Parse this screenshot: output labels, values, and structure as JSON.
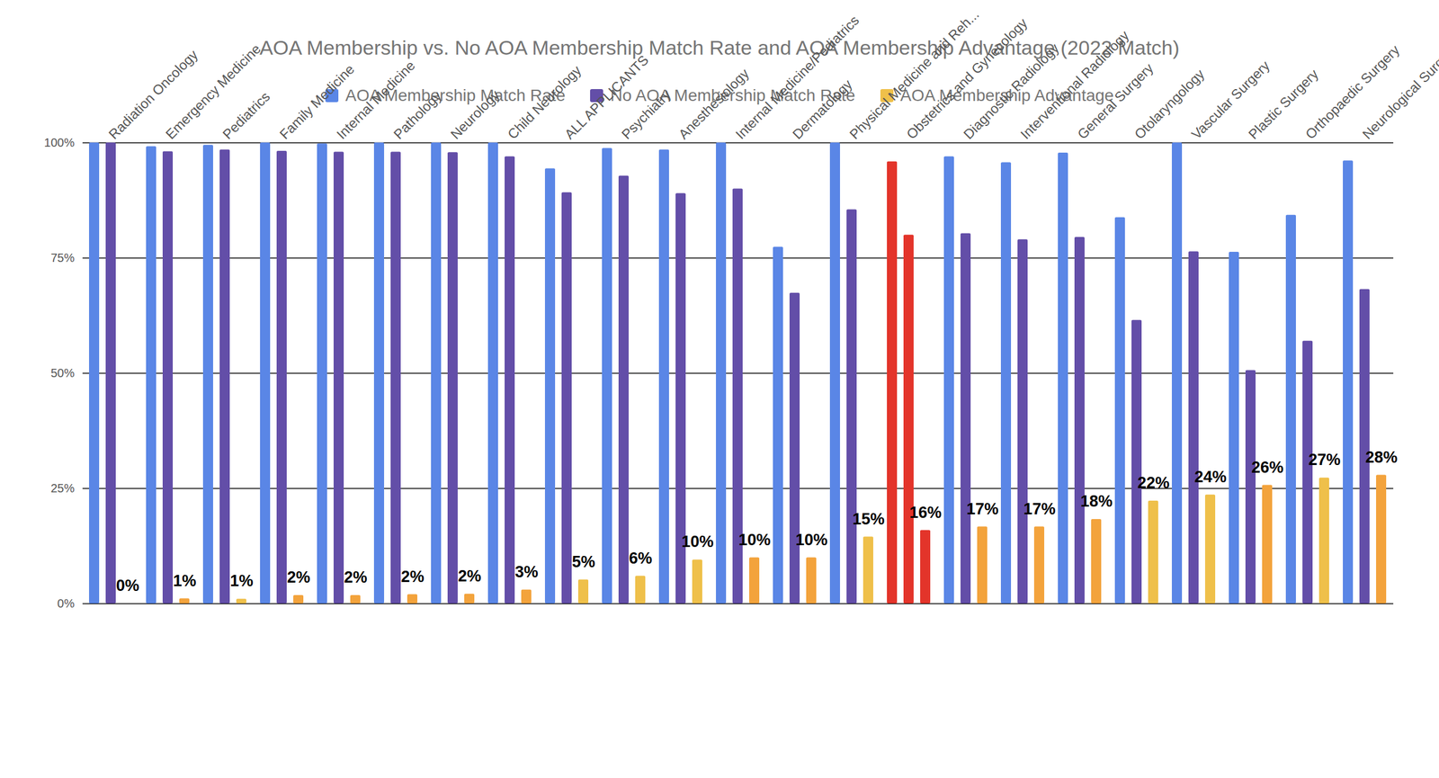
{
  "chart_data": {
    "type": "bar",
    "title": "AOA Membership vs. No AOA Membership Match Rate and AOA Membership Advantage (2022 Match)",
    "categories": [
      "Radiation Oncology",
      "Emergency Medicine",
      "Pediatrics",
      "Family Medicine",
      "Internal Medicine",
      "Pathology",
      "Neurology",
      "Child Neurology",
      "ALL APPLICANTS",
      "Psychiatry",
      "Anesthesiology",
      "Internal Medicine/Pediatrics",
      "Dermatology",
      "Physical Medicine and Reh...",
      "Obstetrics and Gynecology",
      "Diagnostic Radiology",
      "Interventional Radiology",
      "General Surgery",
      "Otolaryngology",
      "Vascular Surgery",
      "Plastic Surgery",
      "Orthopaedic Surgery",
      "Neurological Surgery"
    ],
    "series": [
      {
        "name": "AOA Membership Match Rate",
        "color": "#5a86e6",
        "colors": [
          "#5a86e6",
          "#5a86e6",
          "#5a86e6",
          "#5a86e6",
          "#5a86e6",
          "#5a86e6",
          "#5a86e6",
          "#5a86e6",
          "#5a86e6",
          "#5a86e6",
          "#5a86e6",
          "#5a86e6",
          "#5a86e6",
          "#5a86e6",
          "#e3342a",
          "#5a86e6",
          "#5a86e6",
          "#5a86e6",
          "#5a86e6",
          "#5a86e6",
          "#5a86e6",
          "#5a86e6",
          "#5a86e6"
        ],
        "values": [
          100,
          99.2,
          99.5,
          100,
          99.8,
          100,
          100,
          100,
          94.4,
          98.8,
          98.5,
          100,
          77.4,
          100,
          95.9,
          97.0,
          95.7,
          97.8,
          83.8,
          100,
          76.3,
          84.3,
          96.1
        ]
      },
      {
        "name": "No AOA Membership Match Rate",
        "color": "#634ea8",
        "colors": [
          "#634ea8",
          "#634ea8",
          "#634ea8",
          "#634ea8",
          "#634ea8",
          "#634ea8",
          "#634ea8",
          "#634ea8",
          "#634ea8",
          "#634ea8",
          "#634ea8",
          "#634ea8",
          "#634ea8",
          "#634ea8",
          "#e3342a",
          "#634ea8",
          "#634ea8",
          "#634ea8",
          "#634ea8",
          "#634ea8",
          "#634ea8",
          "#634ea8",
          "#634ea8"
        ],
        "values": [
          100,
          98.1,
          98.5,
          98.2,
          98.0,
          98.0,
          97.9,
          97.0,
          89.2,
          92.8,
          89.0,
          90.0,
          67.4,
          85.5,
          80.0,
          80.3,
          79.0,
          79.5,
          61.5,
          76.4,
          50.6,
          57.0,
          68.2
        ]
      },
      {
        "name": "AOA Membership Advantage",
        "color": "#efc04a",
        "colors": [
          "#efc04a",
          "#f3a33c",
          "#efc04a",
          "#f3a33c",
          "#f3a33c",
          "#f3a33c",
          "#f3a33c",
          "#f3a33c",
          "#efc04a",
          "#efc04a",
          "#efc04a",
          "#f3a33c",
          "#f3a33c",
          "#efc04a",
          "#e3342a",
          "#f3a33c",
          "#f3a33c",
          "#f3a33c",
          "#efc04a",
          "#efc04a",
          "#f3a33c",
          "#efc04a",
          "#f3a33c"
        ],
        "values": [
          0,
          1.1,
          1.0,
          1.8,
          1.8,
          2.0,
          2.1,
          3.0,
          5.2,
          6.0,
          9.5,
          10.0,
          10.0,
          14.5,
          15.9,
          16.7,
          16.7,
          18.3,
          22.3,
          23.6,
          25.7,
          27.3,
          27.9
        ],
        "value_labels": [
          "0%",
          "1%",
          "1%",
          "2%",
          "2%",
          "2%",
          "2%",
          "3%",
          "5%",
          "6%",
          "10%",
          "10%",
          "10%",
          "15%",
          "16%",
          "17%",
          "17%",
          "18%",
          "22%",
          "24%",
          "26%",
          "27%",
          "28%"
        ]
      }
    ],
    "ylim": [
      0,
      100
    ],
    "yticks": [
      {
        "value": 0,
        "label": "0%"
      },
      {
        "value": 25,
        "label": "25%"
      },
      {
        "value": 50,
        "label": "50%"
      },
      {
        "value": 75,
        "label": "75%"
      },
      {
        "value": 100,
        "label": "100%"
      }
    ],
    "grid": true,
    "legend": "top",
    "data_labels": true
  }
}
